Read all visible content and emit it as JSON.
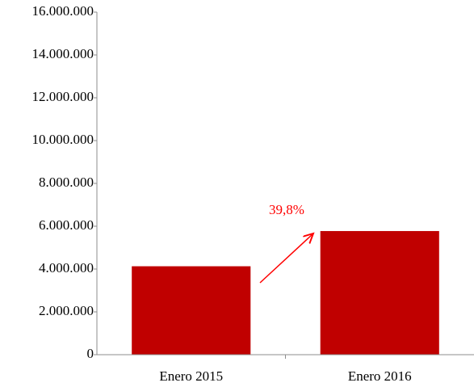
{
  "chart_data": {
    "type": "bar",
    "categories": [
      "Enero 2015",
      "Enero 2016"
    ],
    "values": [
      4130000,
      5775000
    ],
    "color": "#c00000",
    "ylim": [
      0,
      16000000
    ],
    "yticks": [
      0,
      {
        "value": 2000000,
        "label": "2.000.000"
      },
      {
        "value": 4000000,
        "label": "4.000.000"
      },
      {
        "value": 6000000,
        "label": "6.000.000"
      },
      {
        "value": 8000000,
        "label": "8.000.000"
      },
      {
        "value": 10000000,
        "label": "10.000.000"
      },
      {
        "value": 12000000,
        "label": "12.000.000"
      },
      {
        "value": 14000000,
        "label": "14.000.000"
      },
      {
        "value": 16000000,
        "label": "16.000.000"
      }
    ],
    "annotation": "39,8%",
    "annotation_color": "#ff0000"
  }
}
